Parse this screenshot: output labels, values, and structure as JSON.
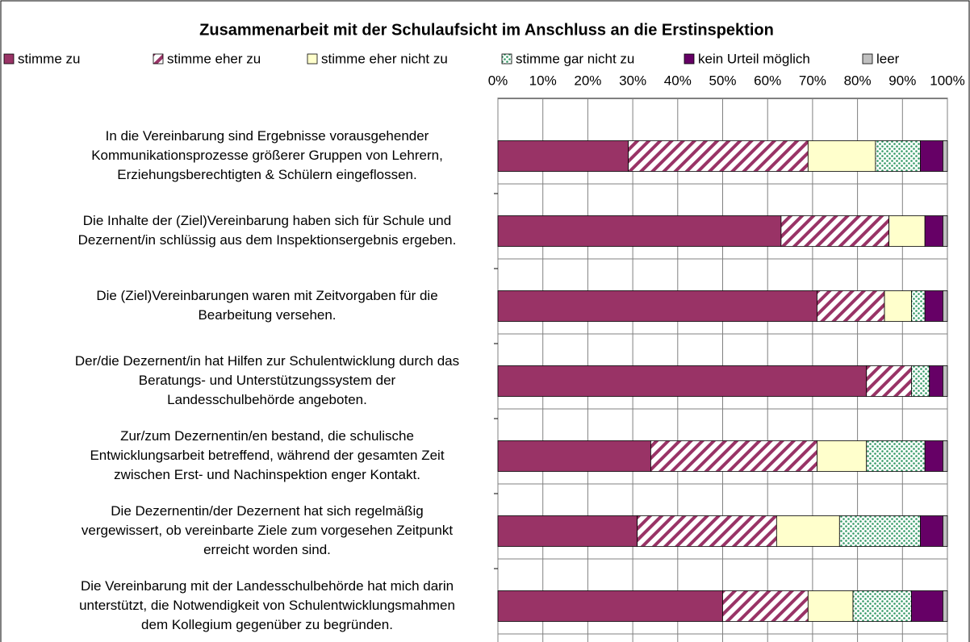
{
  "chart_data": {
    "type": "stacked_bar_horizontal",
    "title": "Zusammenarbeit mit der Schulaufsicht im Anschluss an die Erstinspektion",
    "categories": [
      [
        "In die Vereinbarung sind Ergebnisse vorausgehender",
        "Kommunikationsprozesse größerer Gruppen von Lehrern,",
        "Erziehungsberechtigten & Schülern eingeflossen."
      ],
      [
        "Die Inhalte der (Ziel)Vereinbarung haben sich für Schule und",
        "Dezernent/in schlüssig aus dem Inspektionsergebnis ergeben."
      ],
      [
        "Die (Ziel)Vereinbarungen waren mit Zeitvorgaben für die",
        "Bearbeitung versehen."
      ],
      [
        "Der/die Dezernent/in hat Hilfen zur Schulentwicklung durch das",
        "Beratungs- und Unterstützungssystem der",
        "Landesschulbehörde angeboten."
      ],
      [
        "Zur/zum Dezernentin/en bestand, die schulische",
        "Entwicklungsarbeit betreffend, während der gesamten Zeit",
        "zwischen Erst- und Nachinspektion enger Kontakt."
      ],
      [
        "Die Dezernentin/der Dezernent hat sich regelmäßig",
        "vergewissert, ob vereinbarte Ziele zum vorgesehen Zeitpunkt",
        "erreicht worden sind."
      ],
      [
        "Die Vereinbarung mit der Landesschulbehörde hat mich darin",
        "unterstützt, die Notwendigkeit von Schulentwicklungsmahmen",
        "dem Kollegium gegenüber zu begründen."
      ]
    ],
    "series": [
      {
        "name": "stimme zu",
        "color": "#993366",
        "pattern": "solid",
        "values": [
          29,
          63,
          71,
          82,
          34,
          31,
          50
        ]
      },
      {
        "name": "stimme eher zu",
        "color": "#993366",
        "pattern": "diagonal",
        "values": [
          40,
          24,
          15,
          10,
          37,
          31,
          19
        ]
      },
      {
        "name": "stimme eher nicht zu",
        "color": "#ffffcc",
        "pattern": "solid",
        "values": [
          15,
          8,
          6,
          0,
          11,
          14,
          10
        ]
      },
      {
        "name": "stimme gar nicht zu",
        "color": "#339966",
        "pattern": "dots",
        "values": [
          10,
          0,
          3,
          4,
          13,
          18,
          13
        ]
      },
      {
        "name": "kein Urteil möglich",
        "color": "#660066",
        "pattern": "solid",
        "values": [
          5,
          4,
          4,
          3,
          4,
          5,
          7
        ]
      },
      {
        "name": "leer",
        "color": "#c0c0c0",
        "pattern": "solid",
        "values": [
          1,
          1,
          1,
          1,
          1,
          1,
          1
        ]
      }
    ],
    "xlim": [
      0,
      100
    ],
    "xticks": [
      {
        "value": 0,
        "label": "0%"
      },
      {
        "value": 10,
        "label": "10%"
      },
      {
        "value": 20,
        "label": "20%"
      },
      {
        "value": 30,
        "label": "30%"
      },
      {
        "value": 40,
        "label": "40%"
      },
      {
        "value": 50,
        "label": "50%"
      },
      {
        "value": 60,
        "label": "60%"
      },
      {
        "value": 70,
        "label": "70%"
      },
      {
        "value": 80,
        "label": "80%"
      },
      {
        "value": 90,
        "label": "90%"
      },
      {
        "value": 100,
        "label": "100%"
      }
    ],
    "grid": true,
    "legend": "top"
  }
}
